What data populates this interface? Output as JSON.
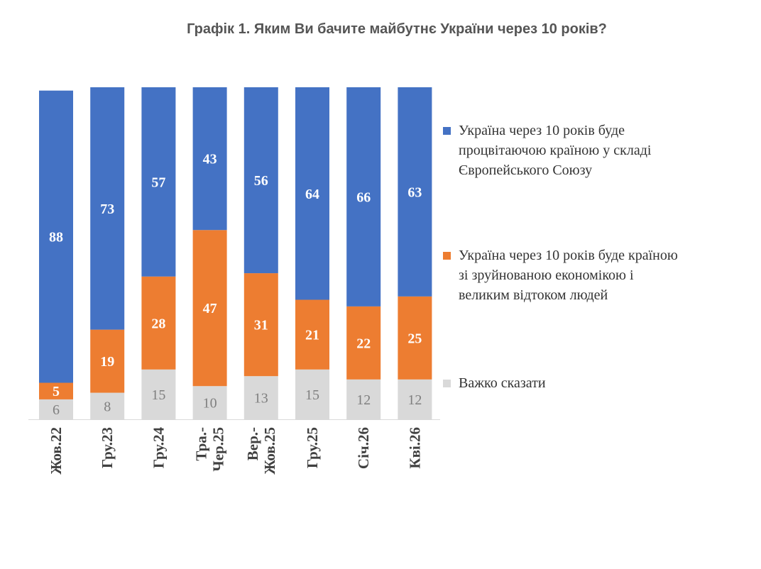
{
  "chart_data": {
    "type": "bar",
    "stacked": true,
    "title": "Графік 1. Яким Ви бачите майбутнє України через 10 років?",
    "categories": [
      "Жов.22",
      "Гру.23",
      "Гру.24",
      "Тра.-Чер.25",
      "Вер.-Жов.25",
      "Гру.25",
      "Січ.26",
      "Кві.26"
    ],
    "category_lines": [
      [
        "Жов.22"
      ],
      [
        "Гру.23"
      ],
      [
        "Гру.24"
      ],
      [
        "Тра.-",
        "Чер.25"
      ],
      [
        "Вер.-",
        "Жов.25"
      ],
      [
        "Гру.25"
      ],
      [
        "Січ.26"
      ],
      [
        "Кві.26"
      ]
    ],
    "ylim": [
      0,
      100
    ],
    "series": [
      {
        "name": "Важко сказати",
        "color": "#D9D9D9",
        "label_color": "#7f7f7f",
        "values": [
          6,
          8,
          15,
          10,
          13,
          15,
          12,
          12
        ]
      },
      {
        "name": "Україна через 10 років буде країною зі зруйнованою економікою і великим відтоком людей",
        "color": "#ED7D31",
        "label_color": "#ffffff",
        "values": [
          5,
          19,
          28,
          47,
          31,
          21,
          22,
          25
        ]
      },
      {
        "name": "Україна через 10 років буде процвітаючою країною у складі Європейського Союзу",
        "color": "#4472C4",
        "label_color": "#ffffff",
        "values": [
          88,
          73,
          57,
          43,
          56,
          64,
          66,
          63
        ]
      }
    ],
    "legend": [
      {
        "lines": [
          "Україна через 10 років буде",
          "процвітаючою країною у складі",
          "Європейського Союзу"
        ],
        "color": "#4472C4"
      },
      {
        "lines": [
          "Україна через 10 років буде країною",
          "зі зруйнованою економікою і",
          "великим відтоком людей"
        ],
        "color": "#ED7D31"
      },
      {
        "lines": [
          "Важко сказати"
        ],
        "color": "#D9D9D9"
      }
    ],
    "legend_position": "right",
    "grid": false
  }
}
